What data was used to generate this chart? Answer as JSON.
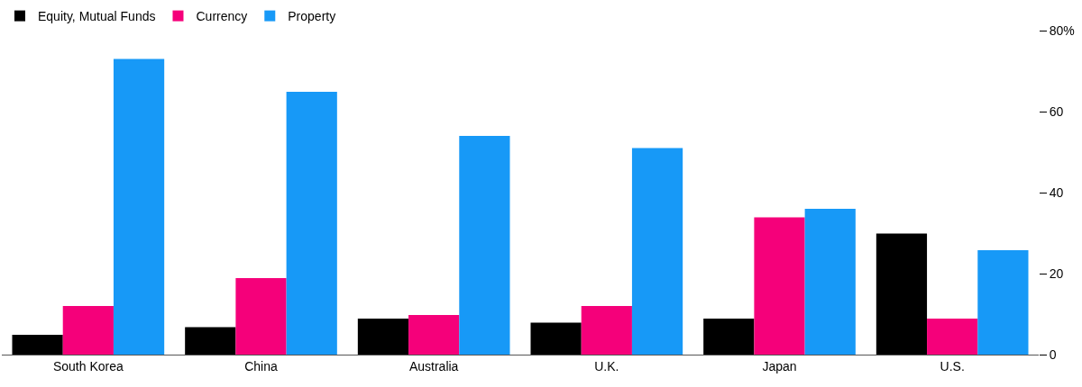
{
  "chart_data": {
    "type": "bar",
    "categories": [
      "South Korea",
      "China",
      "Australia",
      "U.K.",
      "Japan",
      "U.S."
    ],
    "series": [
      {
        "name": "Equity, Mutual Funds",
        "color": "#000000",
        "values": [
          4.9,
          6.8,
          8.9,
          7.9,
          8.9,
          29.9
        ]
      },
      {
        "name": "Currency",
        "color": "#f5007a",
        "values": [
          12.0,
          18.9,
          9.8,
          12.0,
          33.9,
          8.9
        ]
      },
      {
        "name": "Property",
        "color": "#1799f7",
        "values": [
          73.0,
          64.9,
          54.0,
          51.0,
          36.0,
          25.8
        ]
      }
    ],
    "ylim": [
      0,
      80
    ],
    "yticks": [
      0,
      20,
      40,
      60,
      {
        "value": 80,
        "label": "80%"
      }
    ],
    "legend": "top left"
  }
}
